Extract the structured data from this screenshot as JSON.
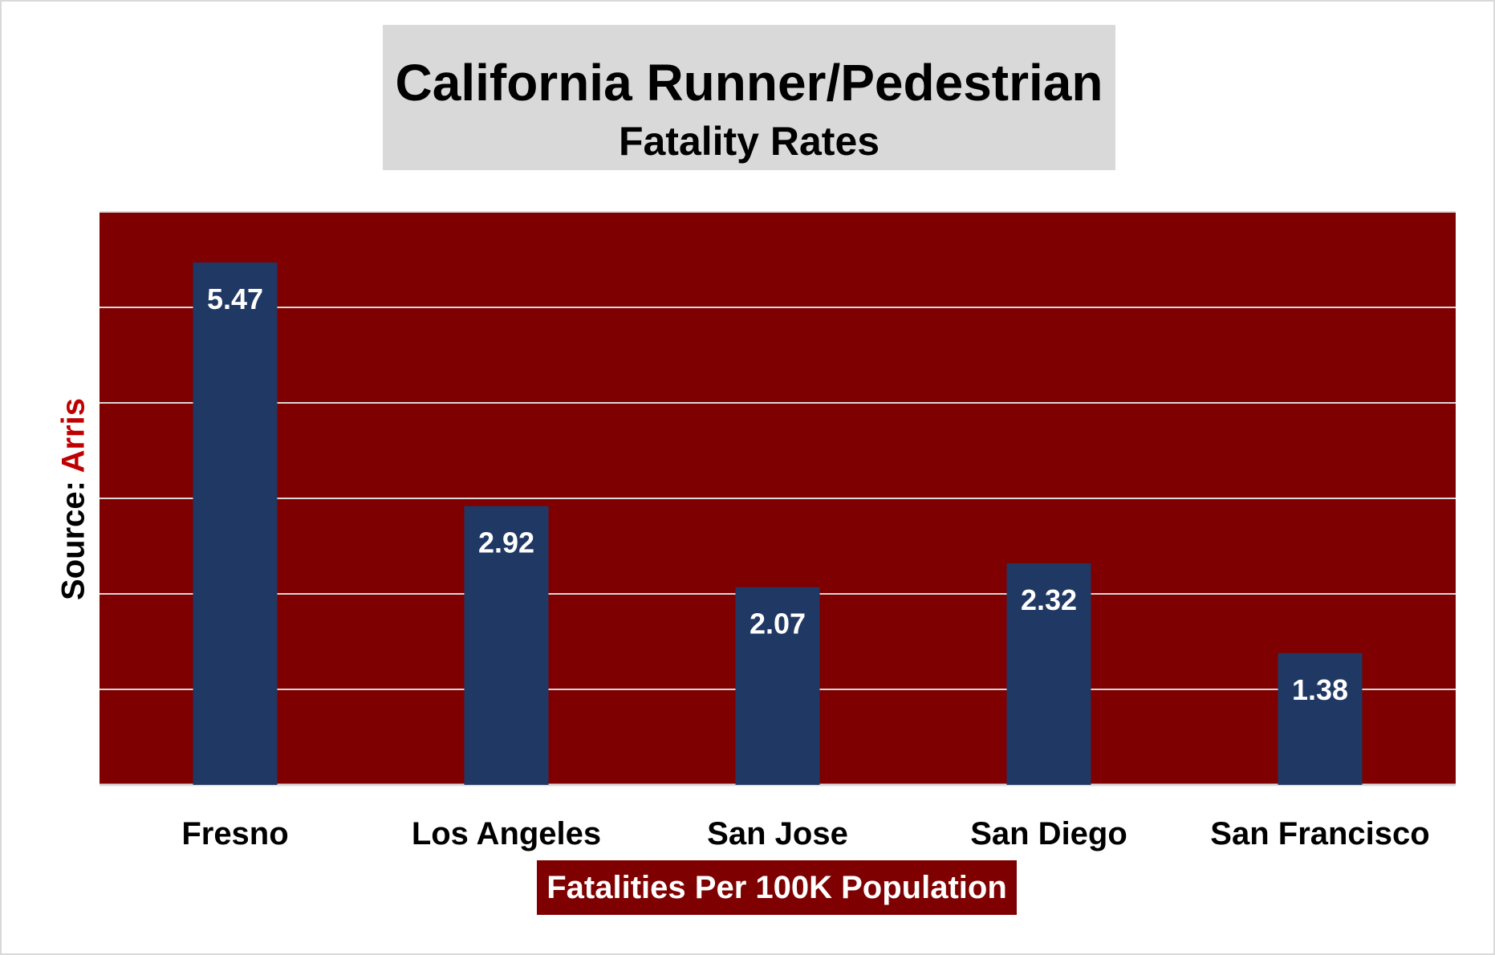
{
  "title": "California Runner/Pedestrian",
  "subtitle": "Fatality Rates",
  "source_label": "Source: ",
  "source_name": "Arris",
  "colors": {
    "plot_background": "#7f0000",
    "bar": "#203864",
    "gridline": "#d9d9d9",
    "title_box": "#d9d9d9",
    "source_name": "#c00000",
    "data_label": "#ffffff"
  },
  "chart_data": {
    "type": "bar",
    "title": "California Runner/Pedestrian",
    "subtitle": "Fatality Rates",
    "categories": [
      "Fresno",
      "Los Angeles",
      "San Jose",
      "San Diego",
      "San Francisco"
    ],
    "values": [
      5.47,
      2.92,
      2.07,
      2.32,
      1.38
    ],
    "data_labels": [
      "5.47",
      "2.92",
      "2.07",
      "2.32",
      "1.38"
    ],
    "xlabel": "Fatalities Per 100K Population",
    "ylabel": "",
    "ylim": [
      0,
      6
    ],
    "y_gridlines": [
      1,
      2,
      3,
      4,
      5,
      6
    ],
    "y_tick_labels_visible": false,
    "grid": true,
    "legend": "none"
  }
}
